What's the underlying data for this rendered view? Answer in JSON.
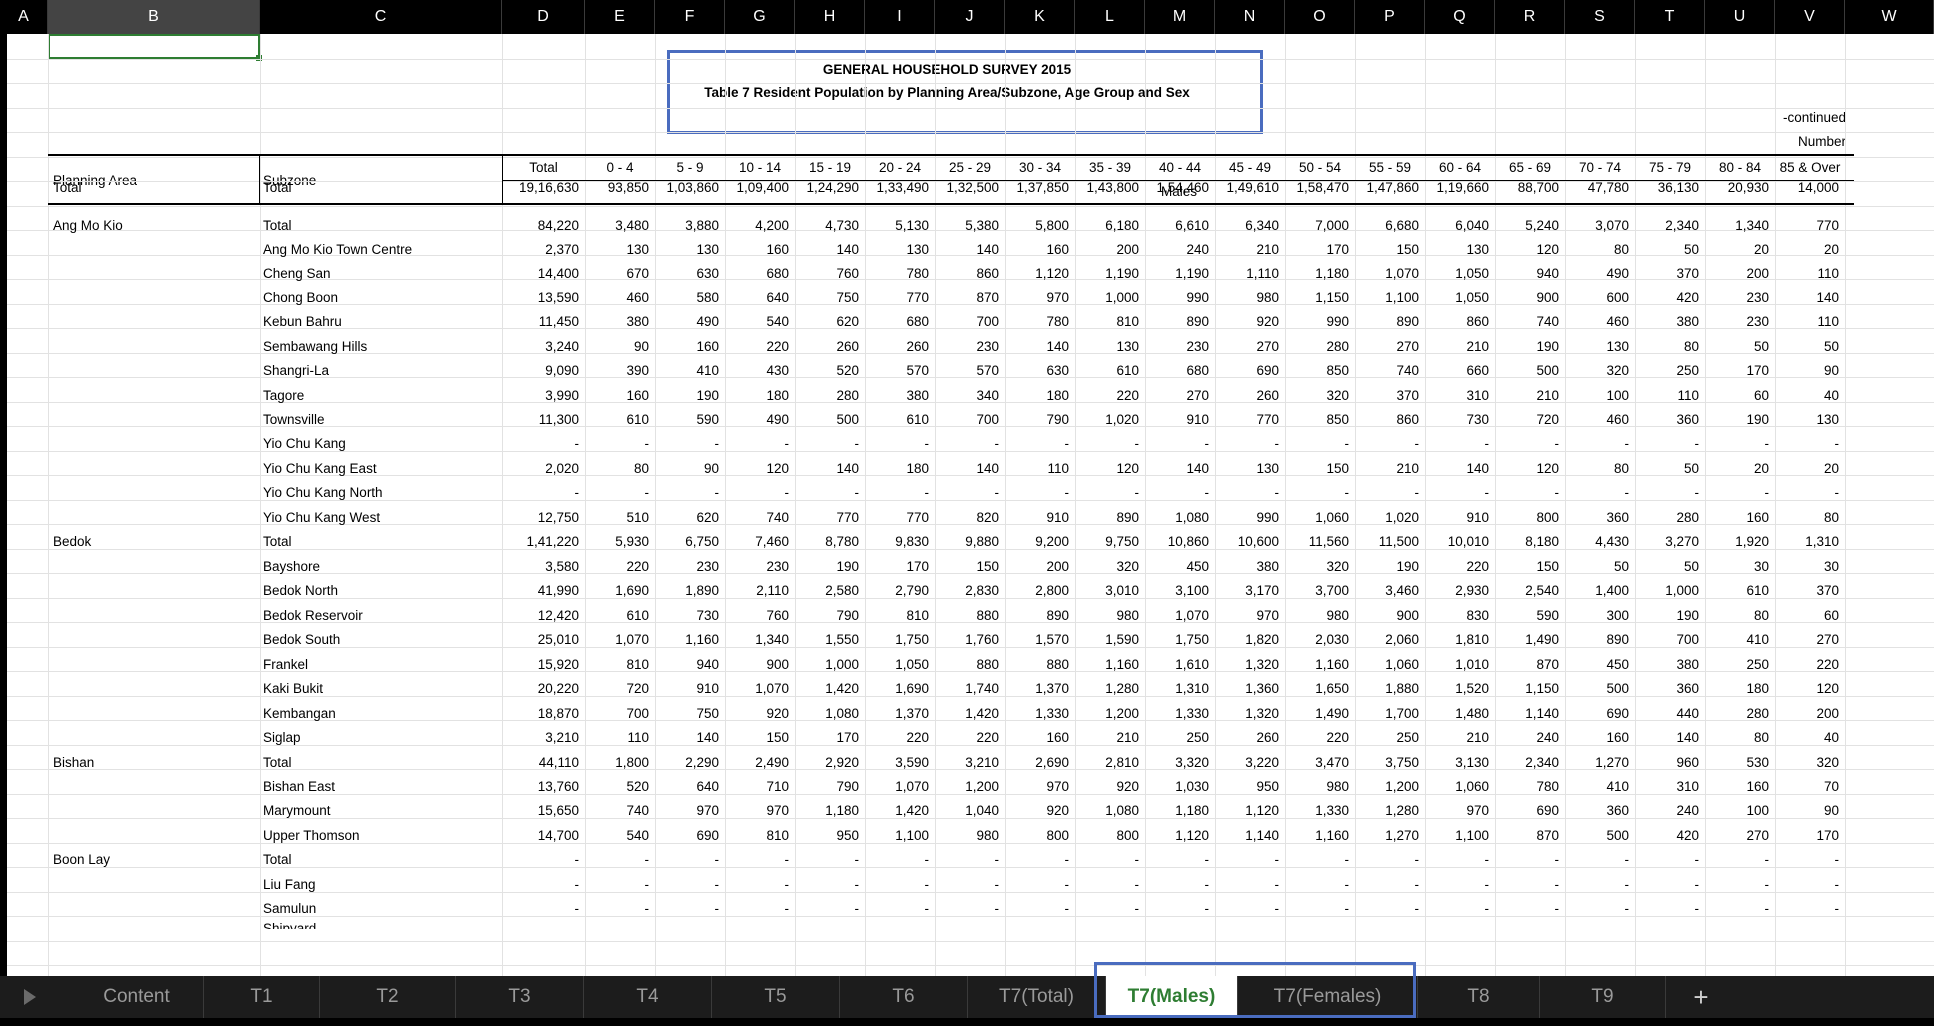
{
  "column_headers": [
    "A",
    "B",
    "C",
    "D",
    "E",
    "F",
    "G",
    "H",
    "I",
    "J",
    "K",
    "L",
    "M",
    "N",
    "O",
    "P",
    "Q",
    "R",
    "S",
    "T",
    "U",
    "V",
    "W"
  ],
  "title_line1": "GENERAL HOUSEHOLD SURVEY 2015",
  "title_line2": "Table 7  Resident Population by Planning Area/Subzone, Age Group and Sex",
  "continued_label": "-continued",
  "number_label": "Number",
  "header": {
    "planning_area": "Planning Area",
    "subzone": "Subzone",
    "age_groups": [
      "Total",
      "0 - 4",
      "5 - 9",
      "10 - 14",
      "15 - 19",
      "20 - 24",
      "25 - 29",
      "30 - 34",
      "35 - 39",
      "40 - 44",
      "45 - 49",
      "50 - 54",
      "55 - 59",
      "60 - 64",
      "65 - 69",
      "70 - 74",
      "75 - 79",
      "80 - 84",
      "85 & Over"
    ],
    "sex_label": "Males"
  },
  "rows": [
    {
      "pa": "Total",
      "sz": "Total",
      "v": [
        "19,16,630",
        "93,850",
        "1,03,860",
        "1,09,400",
        "1,24,290",
        "1,33,490",
        "1,32,500",
        "1,37,850",
        "1,43,800",
        "1,54,460",
        "1,49,610",
        "1,58,470",
        "1,47,860",
        "1,19,660",
        "88,700",
        "47,780",
        "36,130",
        "20,930",
        "14,000"
      ]
    },
    {
      "pa": "Ang Mo Kio",
      "sz": "Total",
      "v": [
        "84,220",
        "3,480",
        "3,880",
        "4,200",
        "4,730",
        "5,130",
        "5,380",
        "5,800",
        "6,180",
        "6,610",
        "6,340",
        "7,000",
        "6,680",
        "6,040",
        "5,240",
        "3,070",
        "2,340",
        "1,340",
        "770"
      ]
    },
    {
      "pa": "",
      "sz": "Ang Mo Kio Town Centre",
      "v": [
        "2,370",
        "130",
        "130",
        "160",
        "140",
        "130",
        "140",
        "160",
        "200",
        "240",
        "210",
        "170",
        "150",
        "130",
        "120",
        "80",
        "50",
        "20",
        "20"
      ]
    },
    {
      "pa": "",
      "sz": "Cheng San",
      "v": [
        "14,400",
        "670",
        "630",
        "680",
        "760",
        "780",
        "860",
        "1,120",
        "1,190",
        "1,190",
        "1,110",
        "1,180",
        "1,070",
        "1,050",
        "940",
        "490",
        "370",
        "200",
        "110"
      ]
    },
    {
      "pa": "",
      "sz": "Chong Boon",
      "v": [
        "13,590",
        "460",
        "580",
        "640",
        "750",
        "770",
        "870",
        "970",
        "1,000",
        "990",
        "980",
        "1,150",
        "1,100",
        "1,050",
        "900",
        "600",
        "420",
        "230",
        "140"
      ]
    },
    {
      "pa": "",
      "sz": "Kebun Bahru",
      "v": [
        "11,450",
        "380",
        "490",
        "540",
        "620",
        "680",
        "700",
        "780",
        "810",
        "890",
        "920",
        "990",
        "890",
        "860",
        "740",
        "460",
        "380",
        "230",
        "110"
      ]
    },
    {
      "pa": "",
      "sz": "Sembawang Hills",
      "v": [
        "3,240",
        "90",
        "160",
        "220",
        "260",
        "260",
        "230",
        "140",
        "130",
        "230",
        "270",
        "280",
        "270",
        "210",
        "190",
        "130",
        "80",
        "50",
        "50"
      ]
    },
    {
      "pa": "",
      "sz": "Shangri-La",
      "v": [
        "9,090",
        "390",
        "410",
        "430",
        "520",
        "570",
        "570",
        "630",
        "610",
        "680",
        "690",
        "850",
        "740",
        "660",
        "500",
        "320",
        "250",
        "170",
        "90"
      ]
    },
    {
      "pa": "",
      "sz": "Tagore",
      "v": [
        "3,990",
        "160",
        "190",
        "180",
        "280",
        "380",
        "340",
        "180",
        "220",
        "270",
        "260",
        "320",
        "370",
        "310",
        "210",
        "100",
        "110",
        "60",
        "40"
      ]
    },
    {
      "pa": "",
      "sz": "Townsville",
      "v": [
        "11,300",
        "610",
        "590",
        "490",
        "500",
        "610",
        "700",
        "790",
        "1,020",
        "910",
        "770",
        "850",
        "860",
        "730",
        "720",
        "460",
        "360",
        "190",
        "130"
      ]
    },
    {
      "pa": "",
      "sz": "Yio Chu Kang",
      "v": [
        "-",
        "-",
        "-",
        "-",
        "-",
        "-",
        "-",
        "-",
        "-",
        "-",
        "-",
        "-",
        "-",
        "-",
        "-",
        "-",
        "-",
        "-",
        "-"
      ]
    },
    {
      "pa": "",
      "sz": "Yio Chu Kang East",
      "v": [
        "2,020",
        "80",
        "90",
        "120",
        "140",
        "180",
        "140",
        "110",
        "120",
        "140",
        "130",
        "150",
        "210",
        "140",
        "120",
        "80",
        "50",
        "20",
        "20"
      ]
    },
    {
      "pa": "",
      "sz": "Yio Chu Kang North",
      "v": [
        "-",
        "-",
        "-",
        "-",
        "-",
        "-",
        "-",
        "-",
        "-",
        "-",
        "-",
        "-",
        "-",
        "-",
        "-",
        "-",
        "-",
        "-",
        "-"
      ]
    },
    {
      "pa": "",
      "sz": "Yio Chu Kang West",
      "v": [
        "12,750",
        "510",
        "620",
        "740",
        "770",
        "770",
        "820",
        "910",
        "890",
        "1,080",
        "990",
        "1,060",
        "1,020",
        "910",
        "800",
        "360",
        "280",
        "160",
        "80"
      ]
    },
    {
      "pa": "Bedok",
      "sz": "Total",
      "v": [
        "1,41,220",
        "5,930",
        "6,750",
        "7,460",
        "8,780",
        "9,830",
        "9,880",
        "9,200",
        "9,750",
        "10,860",
        "10,600",
        "11,560",
        "11,500",
        "10,010",
        "8,180",
        "4,430",
        "3,270",
        "1,920",
        "1,310"
      ]
    },
    {
      "pa": "",
      "sz": "Bayshore",
      "v": [
        "3,580",
        "220",
        "230",
        "230",
        "190",
        "170",
        "150",
        "200",
        "320",
        "450",
        "380",
        "320",
        "190",
        "220",
        "150",
        "50",
        "50",
        "30",
        "30"
      ]
    },
    {
      "pa": "",
      "sz": "Bedok North",
      "v": [
        "41,990",
        "1,690",
        "1,890",
        "2,110",
        "2,580",
        "2,790",
        "2,830",
        "2,800",
        "3,010",
        "3,100",
        "3,170",
        "3,700",
        "3,460",
        "2,930",
        "2,540",
        "1,400",
        "1,000",
        "610",
        "370"
      ]
    },
    {
      "pa": "",
      "sz": "Bedok Reservoir",
      "v": [
        "12,420",
        "610",
        "730",
        "760",
        "790",
        "810",
        "880",
        "890",
        "980",
        "1,070",
        "970",
        "980",
        "900",
        "830",
        "590",
        "300",
        "190",
        "80",
        "60"
      ]
    },
    {
      "pa": "",
      "sz": "Bedok South",
      "v": [
        "25,010",
        "1,070",
        "1,160",
        "1,340",
        "1,550",
        "1,750",
        "1,760",
        "1,570",
        "1,590",
        "1,750",
        "1,820",
        "2,030",
        "2,060",
        "1,810",
        "1,490",
        "890",
        "700",
        "410",
        "270"
      ]
    },
    {
      "pa": "",
      "sz": "Frankel",
      "v": [
        "15,920",
        "810",
        "940",
        "900",
        "1,000",
        "1,050",
        "880",
        "880",
        "1,160",
        "1,610",
        "1,320",
        "1,160",
        "1,060",
        "1,010",
        "870",
        "450",
        "380",
        "250",
        "220"
      ]
    },
    {
      "pa": "",
      "sz": "Kaki Bukit",
      "v": [
        "20,220",
        "720",
        "910",
        "1,070",
        "1,420",
        "1,690",
        "1,740",
        "1,370",
        "1,280",
        "1,310",
        "1,360",
        "1,650",
        "1,880",
        "1,520",
        "1,150",
        "500",
        "360",
        "180",
        "120"
      ]
    },
    {
      "pa": "",
      "sz": "Kembangan",
      "v": [
        "18,870",
        "700",
        "750",
        "920",
        "1,080",
        "1,370",
        "1,420",
        "1,330",
        "1,200",
        "1,330",
        "1,320",
        "1,490",
        "1,700",
        "1,480",
        "1,140",
        "690",
        "440",
        "280",
        "200"
      ]
    },
    {
      "pa": "",
      "sz": "Siglap",
      "v": [
        "3,210",
        "110",
        "140",
        "150",
        "170",
        "220",
        "220",
        "160",
        "210",
        "250",
        "260",
        "220",
        "250",
        "210",
        "240",
        "160",
        "140",
        "80",
        "40"
      ]
    },
    {
      "pa": "Bishan",
      "sz": "Total",
      "v": [
        "44,110",
        "1,800",
        "2,290",
        "2,490",
        "2,920",
        "3,590",
        "3,210",
        "2,690",
        "2,810",
        "3,320",
        "3,220",
        "3,470",
        "3,750",
        "3,130",
        "2,340",
        "1,270",
        "960",
        "530",
        "320"
      ]
    },
    {
      "pa": "",
      "sz": "Bishan East",
      "v": [
        "13,760",
        "520",
        "640",
        "710",
        "790",
        "1,070",
        "1,200",
        "970",
        "920",
        "1,030",
        "950",
        "980",
        "1,200",
        "1,060",
        "780",
        "410",
        "310",
        "160",
        "70"
      ]
    },
    {
      "pa": "",
      "sz": "Marymount",
      "v": [
        "15,650",
        "740",
        "970",
        "970",
        "1,180",
        "1,420",
        "1,040",
        "920",
        "1,080",
        "1,180",
        "1,120",
        "1,330",
        "1,280",
        "970",
        "690",
        "360",
        "240",
        "100",
        "90"
      ]
    },
    {
      "pa": "",
      "sz": "Upper Thomson",
      "v": [
        "14,700",
        "540",
        "690",
        "810",
        "950",
        "1,100",
        "980",
        "800",
        "800",
        "1,120",
        "1,140",
        "1,160",
        "1,270",
        "1,100",
        "870",
        "500",
        "420",
        "270",
        "170"
      ]
    },
    {
      "pa": "Boon Lay",
      "sz": "Total",
      "v": [
        "-",
        "-",
        "-",
        "-",
        "-",
        "-",
        "-",
        "-",
        "-",
        "-",
        "-",
        "-",
        "-",
        "-",
        "-",
        "-",
        "-",
        "-",
        "-"
      ]
    },
    {
      "pa": "",
      "sz": "Liu Fang",
      "v": [
        "-",
        "-",
        "-",
        "-",
        "-",
        "-",
        "-",
        "-",
        "-",
        "-",
        "-",
        "-",
        "-",
        "-",
        "-",
        "-",
        "-",
        "-",
        "-"
      ]
    },
    {
      "pa": "",
      "sz": "Samulun",
      "v": [
        "-",
        "-",
        "-",
        "-",
        "-",
        "-",
        "-",
        "-",
        "-",
        "-",
        "-",
        "-",
        "-",
        "-",
        "-",
        "-",
        "-",
        "-",
        "-"
      ]
    },
    {
      "pa": "",
      "sz": "Shipyard",
      "v": []
    }
  ],
  "sheet_tabs": [
    {
      "label": "Content",
      "active": false
    },
    {
      "label": "T1",
      "active": false
    },
    {
      "label": "T2",
      "active": false
    },
    {
      "label": "T3",
      "active": false
    },
    {
      "label": "T4",
      "active": false
    },
    {
      "label": "T5",
      "active": false
    },
    {
      "label": "T6",
      "active": false
    },
    {
      "label": "T7(Total)",
      "active": false
    },
    {
      "label": "T7(Males)",
      "active": true
    },
    {
      "label": "T7(Females)",
      "active": false
    },
    {
      "label": "T8",
      "active": false
    },
    {
      "label": "T9",
      "active": false
    }
  ],
  "add_sheet_label": "+"
}
